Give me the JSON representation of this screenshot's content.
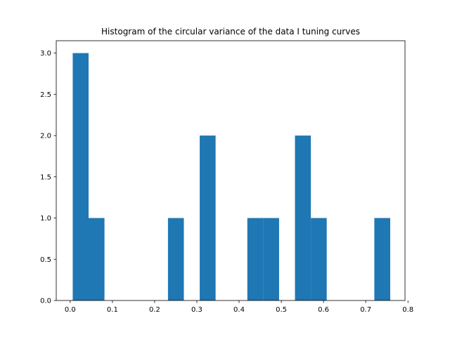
{
  "chart_data": {
    "type": "bar",
    "title": "Histogram of the circular variance of the data I tuning curves",
    "xlabel": "",
    "ylabel": "",
    "xlim": [
      -0.033,
      0.793
    ],
    "ylim": [
      0,
      3.15
    ],
    "bar_color": "#1f77b4",
    "bin_width": 0.0376,
    "bins": [
      {
        "x0": 0.006,
        "x1": 0.0436,
        "count": 3
      },
      {
        "x0": 0.0436,
        "x1": 0.0812,
        "count": 1
      },
      {
        "x0": 0.0812,
        "x1": 0.1188,
        "count": 0
      },
      {
        "x0": 0.1188,
        "x1": 0.1564,
        "count": 0
      },
      {
        "x0": 0.1564,
        "x1": 0.194,
        "count": 0
      },
      {
        "x0": 0.194,
        "x1": 0.2316,
        "count": 0
      },
      {
        "x0": 0.2316,
        "x1": 0.2692,
        "count": 1
      },
      {
        "x0": 0.2692,
        "x1": 0.3068,
        "count": 0
      },
      {
        "x0": 0.3068,
        "x1": 0.3444,
        "count": 2
      },
      {
        "x0": 0.3444,
        "x1": 0.382,
        "count": 0
      },
      {
        "x0": 0.382,
        "x1": 0.4196,
        "count": 0
      },
      {
        "x0": 0.4196,
        "x1": 0.4572,
        "count": 1
      },
      {
        "x0": 0.4572,
        "x1": 0.4948,
        "count": 1
      },
      {
        "x0": 0.4948,
        "x1": 0.5324,
        "count": 0
      },
      {
        "x0": 0.5324,
        "x1": 0.57,
        "count": 2
      },
      {
        "x0": 0.57,
        "x1": 0.6076,
        "count": 1
      },
      {
        "x0": 0.6076,
        "x1": 0.6452,
        "count": 0
      },
      {
        "x0": 0.6452,
        "x1": 0.6828,
        "count": 0
      },
      {
        "x0": 0.6828,
        "x1": 0.7204,
        "count": 0
      },
      {
        "x0": 0.7204,
        "x1": 0.758,
        "count": 1
      }
    ],
    "x_ticks": [
      {
        "value": 0.0,
        "label": "0.0"
      },
      {
        "value": 0.1,
        "label": "0.1"
      },
      {
        "value": 0.2,
        "label": "0.2"
      },
      {
        "value": 0.3,
        "label": "0.3"
      },
      {
        "value": 0.4,
        "label": "0.4"
      },
      {
        "value": 0.5,
        "label": "0.5"
      },
      {
        "value": 0.6,
        "label": "0.6"
      },
      {
        "value": 0.7,
        "label": "0.7"
      },
      {
        "value": 0.8,
        "label": "0.8"
      }
    ],
    "y_ticks": [
      {
        "value": 0.0,
        "label": "0.0"
      },
      {
        "value": 0.5,
        "label": "0.5"
      },
      {
        "value": 1.0,
        "label": "1.0"
      },
      {
        "value": 1.5,
        "label": "1.5"
      },
      {
        "value": 2.0,
        "label": "2.0"
      },
      {
        "value": 2.5,
        "label": "2.5"
      },
      {
        "value": 3.0,
        "label": "3.0"
      }
    ],
    "grid": false,
    "legend": "none"
  }
}
